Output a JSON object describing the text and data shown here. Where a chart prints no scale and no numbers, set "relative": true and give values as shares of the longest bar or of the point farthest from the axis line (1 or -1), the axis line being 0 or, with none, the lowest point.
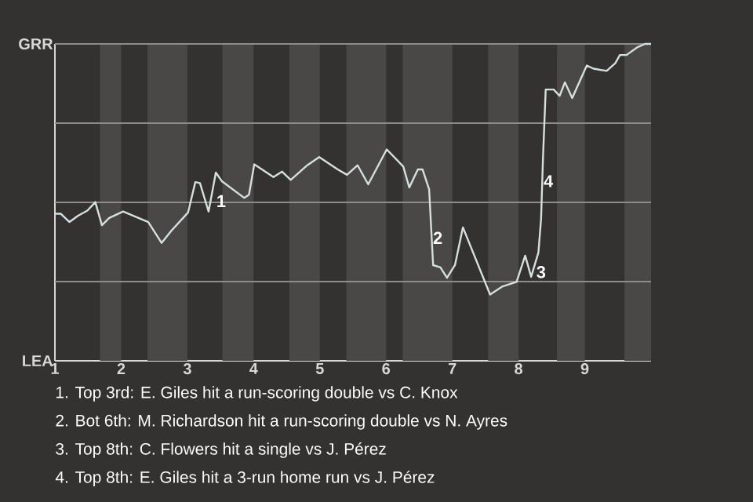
{
  "chart_data": {
    "type": "line",
    "relative": true,
    "xlim": [
      1,
      10
    ],
    "xticks": [
      {
        "value": 1,
        "label": "1"
      },
      {
        "value": 2,
        "label": "2"
      },
      {
        "value": 3,
        "label": "3"
      },
      {
        "value": 4,
        "label": "4"
      },
      {
        "value": 5,
        "label": "5"
      },
      {
        "value": 6,
        "label": "6"
      },
      {
        "value": 7,
        "label": "7"
      },
      {
        "value": 8,
        "label": "8"
      },
      {
        "value": 9,
        "label": "9"
      }
    ],
    "series": [
      {
        "color": "#d4e0e0",
        "x": [
          1.0,
          1.09,
          1.22,
          1.35,
          1.49,
          1.61,
          1.71,
          1.82,
          2.03,
          2.41,
          2.61,
          2.76,
          3.01,
          3.12,
          3.19,
          3.32,
          3.43,
          3.52,
          3.86,
          3.93,
          4.01,
          4.3,
          4.43,
          4.56,
          4.81,
          4.99,
          5.27,
          5.41,
          5.57,
          5.73,
          6.01,
          6.26,
          6.35,
          6.48,
          6.55,
          6.65,
          6.71,
          6.82,
          6.92,
          7.04,
          7.16,
          7.57,
          7.76,
          7.97,
          8.1,
          8.19,
          8.3,
          8.34,
          8.37,
          8.41,
          8.53,
          8.62,
          8.7,
          8.81,
          9.03,
          9.13,
          9.33,
          9.46,
          9.53,
          9.63,
          9.79,
          9.91,
          10.0
        ],
        "values": [
          0.464,
          0.464,
          0.438,
          0.458,
          0.474,
          0.501,
          0.428,
          0.451,
          0.471,
          0.438,
          0.372,
          0.411,
          0.468,
          0.564,
          0.561,
          0.471,
          0.594,
          0.567,
          0.514,
          0.524,
          0.62,
          0.58,
          0.597,
          0.571,
          0.617,
          0.643,
          0.604,
          0.587,
          0.617,
          0.557,
          0.667,
          0.613,
          0.547,
          0.604,
          0.604,
          0.541,
          0.302,
          0.295,
          0.262,
          0.302,
          0.421,
          0.209,
          0.235,
          0.249,
          0.332,
          0.265,
          0.342,
          0.448,
          0.647,
          0.856,
          0.856,
          0.836,
          0.879,
          0.829,
          0.932,
          0.922,
          0.915,
          0.939,
          0.965,
          0.965,
          0.989,
          1.0,
          1.0
        ]
      }
    ],
    "ref_lines": [
      {
        "axis": "y",
        "value": 0.25,
        "color": "#8c8c8c"
      },
      {
        "axis": "y",
        "value": 0.5,
        "color": "#8c8c8c"
      },
      {
        "axis": "y",
        "value": 0.75,
        "color": "#8c8c8c"
      },
      {
        "axis": "y",
        "value": 1,
        "color": "#8c8c8c"
      }
    ],
    "bands": [
      {
        "axis": "x",
        "from": 1.68,
        "to": 2,
        "color": "#4a4846"
      },
      {
        "axis": "x",
        "from": 2.4,
        "to": 3,
        "color": "#4a4846"
      },
      {
        "axis": "x",
        "from": 3.53,
        "to": 4,
        "color": "#4a4846"
      },
      {
        "axis": "x",
        "from": 4.54,
        "to": 5,
        "color": "#4a4846"
      },
      {
        "axis": "x",
        "from": 5.4,
        "to": 6,
        "color": "#4a4846"
      },
      {
        "axis": "x",
        "from": 6.25,
        "to": 7,
        "color": "#4a4846"
      },
      {
        "axis": "x",
        "from": 7.54,
        "to": 8,
        "color": "#4a4846"
      },
      {
        "axis": "x",
        "from": 8.58,
        "to": 9,
        "color": "#4a4846"
      },
      {
        "axis": "x",
        "from": 9.6,
        "to": 10,
        "color": "#4a4846"
      }
    ],
    "annotations": [
      {
        "text": "1",
        "x": 3.51,
        "y": 0.504
      },
      {
        "text": "2",
        "x": 6.78,
        "y": 0.388
      },
      {
        "text": "3",
        "x": 8.34,
        "y": 0.28
      },
      {
        "text": "4",
        "x": 8.45,
        "y": 0.567
      },
      "GRR",
      "LEA",
      "1. Top 3rd: E. Giles hit a run-scoring double vs C. Knox",
      "2. Bot 6th: M. Richardson hit a run-scoring double vs N. Ayres",
      "3. Top 8th: C. Flowers hit a single vs J. Pérez",
      "4. Top 8th: E. Giles hit a 3-run home run vs J. Pérez"
    ]
  }
}
